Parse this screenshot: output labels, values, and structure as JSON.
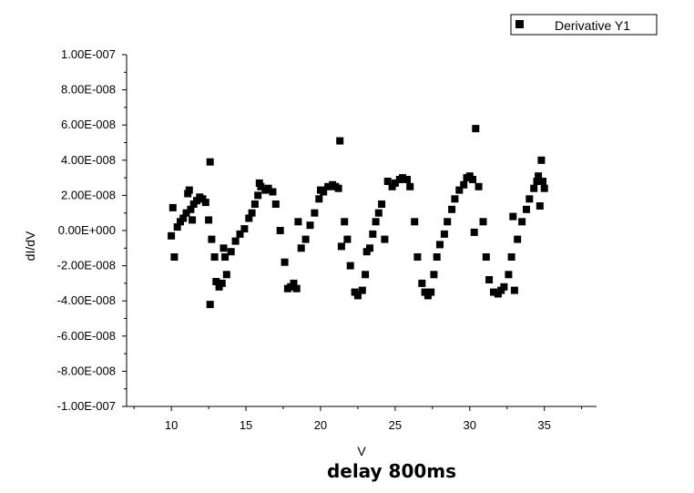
{
  "caption": "delay 800ms",
  "chart_data": {
    "type": "scatter",
    "title": "",
    "xlabel": "V",
    "ylabel": "dI/dV",
    "xlim": [
      7,
      38.5
    ],
    "ylim": [
      -1e-07,
      1e-07
    ],
    "x_ticks": [
      10,
      15,
      20,
      25,
      30,
      35
    ],
    "y_ticks": [
      {
        "value": 1e-07,
        "label": "1.00E-007"
      },
      {
        "value": 8e-08,
        "label": "8.00E-008"
      },
      {
        "value": 6e-08,
        "label": "6.00E-008"
      },
      {
        "value": 4e-08,
        "label": "4.00E-008"
      },
      {
        "value": 2e-08,
        "label": "2.00E-008"
      },
      {
        "value": 0,
        "label": "0.00E+000"
      },
      {
        "value": -2e-08,
        "label": "-2.00E-008"
      },
      {
        "value": -4e-08,
        "label": "-4.00E-008"
      },
      {
        "value": -6e-08,
        "label": "-6.00E-008"
      },
      {
        "value": -8e-08,
        "label": "-8.00E-008"
      },
      {
        "value": -1e-07,
        "label": "-1.00E-007"
      }
    ],
    "grid": false,
    "legend": {
      "placement": "top-right",
      "entries": [
        "Derivative Y1"
      ]
    },
    "series": [
      {
        "name": "Derivative Y1",
        "color": "#000000",
        "marker": "square",
        "points": [
          [
            10.0,
            -3e-09
          ],
          [
            10.1,
            1.3e-08
          ],
          [
            10.2,
            -1.5e-08
          ],
          [
            10.4,
            2e-09
          ],
          [
            10.6,
            5e-09
          ],
          [
            10.8,
            7e-09
          ],
          [
            11.0,
            1e-08
          ],
          [
            11.1,
            2.1e-08
          ],
          [
            11.2,
            2.3e-08
          ],
          [
            11.3,
            1.2e-08
          ],
          [
            11.4,
            6e-09
          ],
          [
            11.5,
            1.5e-08
          ],
          [
            11.7,
            1.7e-08
          ],
          [
            11.9,
            1.9e-08
          ],
          [
            12.1,
            1.8e-08
          ],
          [
            12.3,
            1.6e-08
          ],
          [
            12.5,
            6e-09
          ],
          [
            12.6,
            3.9e-08
          ],
          [
            12.6,
            -4.2e-08
          ],
          [
            12.7,
            -5e-09
          ],
          [
            12.9,
            -1.5e-08
          ],
          [
            13.0,
            -2.9e-08
          ],
          [
            13.2,
            -3.2e-08
          ],
          [
            13.4,
            -3e-08
          ],
          [
            13.5,
            -1e-08
          ],
          [
            13.6,
            -1.5e-08
          ],
          [
            13.7,
            -2.5e-08
          ],
          [
            14.0,
            -1.2e-08
          ],
          [
            14.3,
            -6e-09
          ],
          [
            14.6,
            -2e-09
          ],
          [
            14.9,
            1e-09
          ],
          [
            15.2,
            7e-09
          ],
          [
            15.4,
            1e-08
          ],
          [
            15.6,
            1.5e-08
          ],
          [
            15.8,
            2e-08
          ],
          [
            15.9,
            2.7e-08
          ],
          [
            16.0,
            2.5e-08
          ],
          [
            16.3,
            2.3e-08
          ],
          [
            16.5,
            2.4e-08
          ],
          [
            16.8,
            2.2e-08
          ],
          [
            17.0,
            1.5e-08
          ],
          [
            17.3,
            0.0
          ],
          [
            17.6,
            -1.8e-08
          ],
          [
            17.8,
            -3.3e-08
          ],
          [
            18.0,
            -3.2e-08
          ],
          [
            18.2,
            -3e-08
          ],
          [
            18.4,
            -3.3e-08
          ],
          [
            18.5,
            5e-09
          ],
          [
            18.7,
            -1e-08
          ],
          [
            19.0,
            -5e-09
          ],
          [
            19.3,
            3e-09
          ],
          [
            19.6,
            1e-08
          ],
          [
            19.9,
            1.8e-08
          ],
          [
            20.0,
            2.3e-08
          ],
          [
            20.2,
            2.2e-08
          ],
          [
            20.5,
            2.5e-08
          ],
          [
            20.8,
            2.6e-08
          ],
          [
            21.0,
            2.5e-08
          ],
          [
            21.2,
            2.4e-08
          ],
          [
            21.3,
            5.1e-08
          ],
          [
            21.4,
            -9e-09
          ],
          [
            21.6,
            5e-09
          ],
          [
            21.8,
            -5e-09
          ],
          [
            22.0,
            -2e-08
          ],
          [
            22.3,
            -3.5e-08
          ],
          [
            22.5,
            -3.7e-08
          ],
          [
            22.8,
            -3.4e-08
          ],
          [
            23.0,
            -2.5e-08
          ],
          [
            23.1,
            -1.2e-08
          ],
          [
            23.3,
            -1e-08
          ],
          [
            23.5,
            -2e-09
          ],
          [
            23.7,
            5e-09
          ],
          [
            23.9,
            1e-08
          ],
          [
            24.1,
            1.5e-08
          ],
          [
            24.3,
            -5e-09
          ],
          [
            24.5,
            2.8e-08
          ],
          [
            24.8,
            2.5e-08
          ],
          [
            25.0,
            2.7e-08
          ],
          [
            25.3,
            2.9e-08
          ],
          [
            25.5,
            3e-08
          ],
          [
            25.8,
            2.9e-08
          ],
          [
            26.0,
            2.5e-08
          ],
          [
            26.3,
            5e-09
          ],
          [
            26.5,
            -1.5e-08
          ],
          [
            26.8,
            -3e-08
          ],
          [
            27.0,
            -3.5e-08
          ],
          [
            27.2,
            -3.7e-08
          ],
          [
            27.4,
            -3.5e-08
          ],
          [
            27.6,
            -2.5e-08
          ],
          [
            27.8,
            -1.5e-08
          ],
          [
            28.0,
            -8e-09
          ],
          [
            28.3,
            -2e-09
          ],
          [
            28.5,
            5e-09
          ],
          [
            28.8,
            1.2e-08
          ],
          [
            29.0,
            1.8e-08
          ],
          [
            29.3,
            2.3e-08
          ],
          [
            29.6,
            2.6e-08
          ],
          [
            29.8,
            3e-08
          ],
          [
            30.0,
            3.1e-08
          ],
          [
            30.2,
            2.9e-08
          ],
          [
            30.3,
            -1e-09
          ],
          [
            30.4,
            5.8e-08
          ],
          [
            30.6,
            2.5e-08
          ],
          [
            30.9,
            5e-09
          ],
          [
            31.1,
            -1.5e-08
          ],
          [
            31.3,
            -2.8e-08
          ],
          [
            31.6,
            -3.5e-08
          ],
          [
            31.9,
            -3.6e-08
          ],
          [
            32.1,
            -3.4e-08
          ],
          [
            32.3,
            -3.2e-08
          ],
          [
            32.6,
            -2.5e-08
          ],
          [
            32.8,
            -1.5e-08
          ],
          [
            32.9,
            8e-09
          ],
          [
            33.0,
            -3.4e-08
          ],
          [
            33.2,
            -5e-09
          ],
          [
            33.5,
            5e-09
          ],
          [
            33.8,
            1.2e-08
          ],
          [
            34.0,
            1.8e-08
          ],
          [
            34.3,
            2.4e-08
          ],
          [
            34.5,
            2.8e-08
          ],
          [
            34.6,
            3.1e-08
          ],
          [
            34.7,
            1.4e-08
          ],
          [
            34.8,
            4e-08
          ],
          [
            34.9,
            2.8e-08
          ],
          [
            35.0,
            2.4e-08
          ]
        ]
      }
    ]
  }
}
